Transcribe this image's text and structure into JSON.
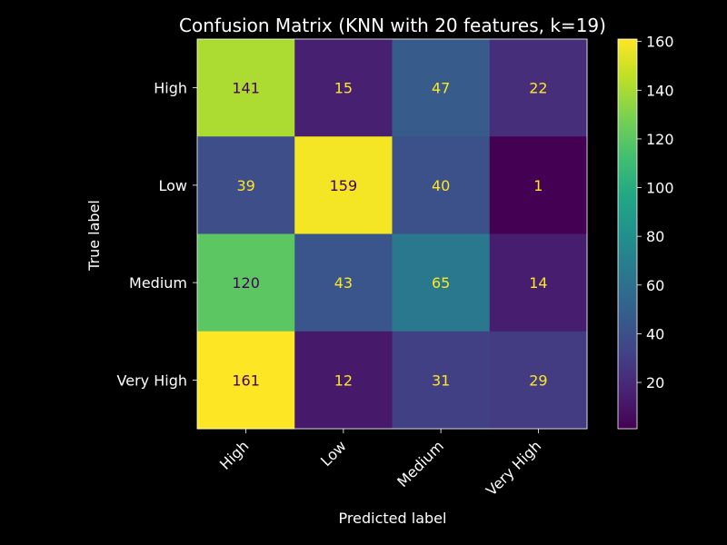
{
  "chart_data": {
    "type": "heatmap",
    "title": "Confusion Matrix (KNN with 20 features, k=19)",
    "xlabel": "Predicted label",
    "ylabel": "True label",
    "x_categories": [
      "High",
      "Low",
      "Medium",
      "Very High"
    ],
    "y_categories": [
      "High",
      "Low",
      "Medium",
      "Very High"
    ],
    "values": [
      [
        141,
        15,
        47,
        22
      ],
      [
        39,
        159,
        40,
        1
      ],
      [
        120,
        43,
        65,
        14
      ],
      [
        161,
        12,
        31,
        29
      ]
    ],
    "colormap": "viridis",
    "color_range": [
      1,
      161
    ],
    "colorbar_ticks": [
      20,
      40,
      60,
      80,
      100,
      120,
      140,
      160
    ],
    "label_colors": {
      "on_dark": "#fde725",
      "on_light": "#440154"
    },
    "background": "#000000",
    "text_color": "#ffffff"
  }
}
